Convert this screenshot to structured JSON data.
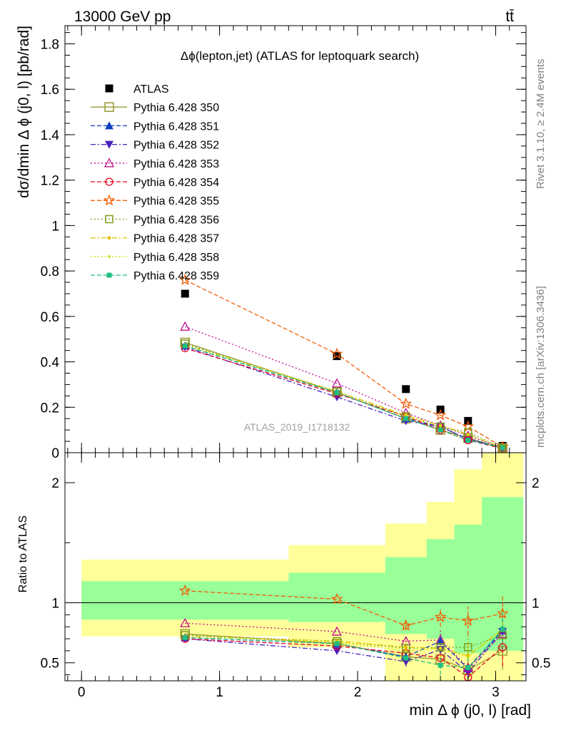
{
  "header": {
    "energy_label": "13000 GeV pp",
    "process_label": "tt̄"
  },
  "side_labels": {
    "rivet": "Rivet 3.1.10, ≥ 2.4M events",
    "site": "mcplots.cern.ch [arXiv:1306.3436]"
  },
  "chart_data": [
    {
      "type": "scatter",
      "panel": "main",
      "title": "Δϕ(lepton,jet) (ATLAS for leptoquark search)",
      "analysis_label": "ATLAS_2019_I1718132",
      "xlabel": "min Δ ϕ (j0, l) [rad]",
      "ylabel": "dσ/dmin Δ ϕ (j0, l) [pb/rad]",
      "xlim": [
        -0.12,
        3.22
      ],
      "ylim": [
        0,
        1.88
      ],
      "yticks": [
        0,
        0.2,
        0.4,
        0.6,
        0.8,
        1,
        1.2,
        1.4,
        1.6,
        1.8
      ],
      "ytick_labels": [
        "0",
        "0.2",
        "0.4",
        "0.6",
        "0.8",
        "1",
        "1.2",
        "1.4",
        "1.6",
        "1.8"
      ],
      "x": [
        0.75,
        1.85,
        2.35,
        2.6,
        2.8,
        3.05
      ],
      "bin_edges": [
        0,
        1.5,
        2.2,
        2.5,
        2.7,
        2.9,
        3.2
      ],
      "legend_position": "top-left",
      "series": [
        {
          "name": "ATLAS",
          "color": "#000000",
          "marker": "square-filled",
          "dash": "none",
          "values": [
            0.7,
            0.425,
            0.28,
            0.19,
            0.14,
            0.03
          ]
        },
        {
          "name": "Pythia 6.428 350",
          "color": "#999933",
          "marker": "square-open",
          "dash": "solid",
          "values": [
            0.485,
            0.265,
            0.15,
            0.1,
            0.065,
            0.02
          ]
        },
        {
          "name": "Pythia 6.428 351",
          "color": "#0f3fbf",
          "marker": "triangle-up-filled",
          "dash": "dash",
          "values": [
            0.47,
            0.265,
            0.15,
            0.115,
            0.06,
            0.022
          ]
        },
        {
          "name": "Pythia 6.428 352",
          "color": "#4b1fbf",
          "marker": "triangle-down-filled",
          "dash": "dashdot",
          "values": [
            0.465,
            0.245,
            0.14,
            0.115,
            0.06,
            0.02
          ]
        },
        {
          "name": "Pythia 6.428 353",
          "color": "#bf0f8f",
          "marker": "triangle-up-open",
          "dash": "dot",
          "values": [
            0.555,
            0.305,
            0.175,
            0.12,
            0.075,
            0.022
          ]
        },
        {
          "name": "Pythia 6.428 354",
          "color": "#e8001e",
          "marker": "circle-open",
          "dash": "dash",
          "values": [
            0.46,
            0.26,
            0.16,
            0.1,
            0.055,
            0.018
          ]
        },
        {
          "name": "Pythia 6.428 355",
          "color": "#f25c05",
          "marker": "star-open",
          "dash": "dash",
          "values": [
            0.76,
            0.435,
            0.215,
            0.165,
            0.115,
            0.025
          ]
        },
        {
          "name": "Pythia 6.428 356",
          "color": "#7f9f1f",
          "marker": "square-open-small",
          "dash": "dot",
          "values": [
            0.48,
            0.27,
            0.16,
            0.115,
            0.09,
            0.02
          ]
        },
        {
          "name": "Pythia 6.428 357",
          "color": "#e0c000",
          "marker": "dot",
          "dash": "dashdot",
          "values": [
            0.475,
            0.27,
            0.165,
            0.12,
            0.08,
            0.022
          ]
        },
        {
          "name": "Pythia 6.428 358",
          "color": "#c8e000",
          "marker": "dot-small",
          "dash": "dot",
          "values": [
            0.475,
            0.27,
            0.16,
            0.115,
            0.08,
            0.022
          ]
        },
        {
          "name": "Pythia 6.428 359",
          "color": "#1fbf7f",
          "marker": "square-filled-small",
          "dash": "dash",
          "values": [
            0.47,
            0.265,
            0.15,
            0.1,
            0.055,
            0.022
          ]
        }
      ]
    },
    {
      "type": "line",
      "panel": "ratio",
      "ylabel": "Ratio to ATLAS",
      "xlabel": "min Δ ϕ (j0, l) [rad]",
      "xlim": [
        -0.12,
        3.22
      ],
      "ylim": [
        0.35,
        2.25
      ],
      "xticks": [
        0,
        1,
        2,
        3
      ],
      "xtick_labels": [
        "0",
        "1",
        "2",
        "3"
      ],
      "yticks": [
        0.5,
        1,
        2
      ],
      "ytick_labels": [
        "0.5",
        "1",
        "2"
      ],
      "x": [
        0.75,
        1.85,
        2.35,
        2.6,
        2.8,
        3.05
      ],
      "bin_edges": [
        0,
        1.5,
        2.2,
        2.5,
        2.7,
        2.9,
        3.2
      ],
      "band_green": [
        [
          0.86,
          1.18
        ],
        [
          0.84,
          1.25
        ],
        [
          0.74,
          1.38
        ],
        [
          0.7,
          1.53
        ],
        [
          0.58,
          1.65
        ],
        [
          0.6,
          1.88
        ]
      ],
      "band_yellow": [
        [
          0.72,
          1.36
        ],
        [
          0.63,
          1.48
        ],
        [
          0.35,
          1.66
        ],
        [
          0.35,
          1.84
        ],
        [
          0.35,
          2.11
        ],
        [
          0.35,
          2.25
        ]
      ],
      "series": [
        {
          "name": "Pythia 6.428 350",
          "values": [
            0.74,
            0.66,
            0.55,
            0.53,
            0.44,
            0.6
          ]
        },
        {
          "name": "Pythia 6.428 351",
          "values": [
            0.71,
            0.66,
            0.55,
            0.68,
            0.45,
            0.77
          ]
        },
        {
          "name": "Pythia 6.428 352",
          "values": [
            0.7,
            0.6,
            0.51,
            0.61,
            0.42,
            0.76
          ]
        },
        {
          "name": "Pythia 6.428 353",
          "values": [
            0.83,
            0.76,
            0.68,
            0.69,
            0.46,
            0.74
          ]
        },
        {
          "name": "Pythia 6.428 354",
          "values": [
            0.7,
            0.64,
            0.58,
            0.54,
            0.38,
            0.63
          ]
        },
        {
          "name": "Pythia 6.428 355",
          "values": [
            1.1,
            1.03,
            0.81,
            0.88,
            0.85,
            0.91
          ]
        },
        {
          "name": "Pythia 6.428 356",
          "values": [
            0.73,
            0.68,
            0.62,
            0.63,
            0.63,
            0.73
          ]
        },
        {
          "name": "Pythia 6.428 357",
          "values": [
            0.72,
            0.68,
            0.63,
            0.62,
            0.56,
            0.78
          ]
        },
        {
          "name": "Pythia 6.428 358",
          "values": [
            0.72,
            0.67,
            0.6,
            0.62,
            0.55,
            0.78
          ]
        },
        {
          "name": "Pythia 6.428 359",
          "values": [
            0.71,
            0.66,
            0.54,
            0.48,
            0.46,
            0.78
          ]
        }
      ]
    }
  ]
}
